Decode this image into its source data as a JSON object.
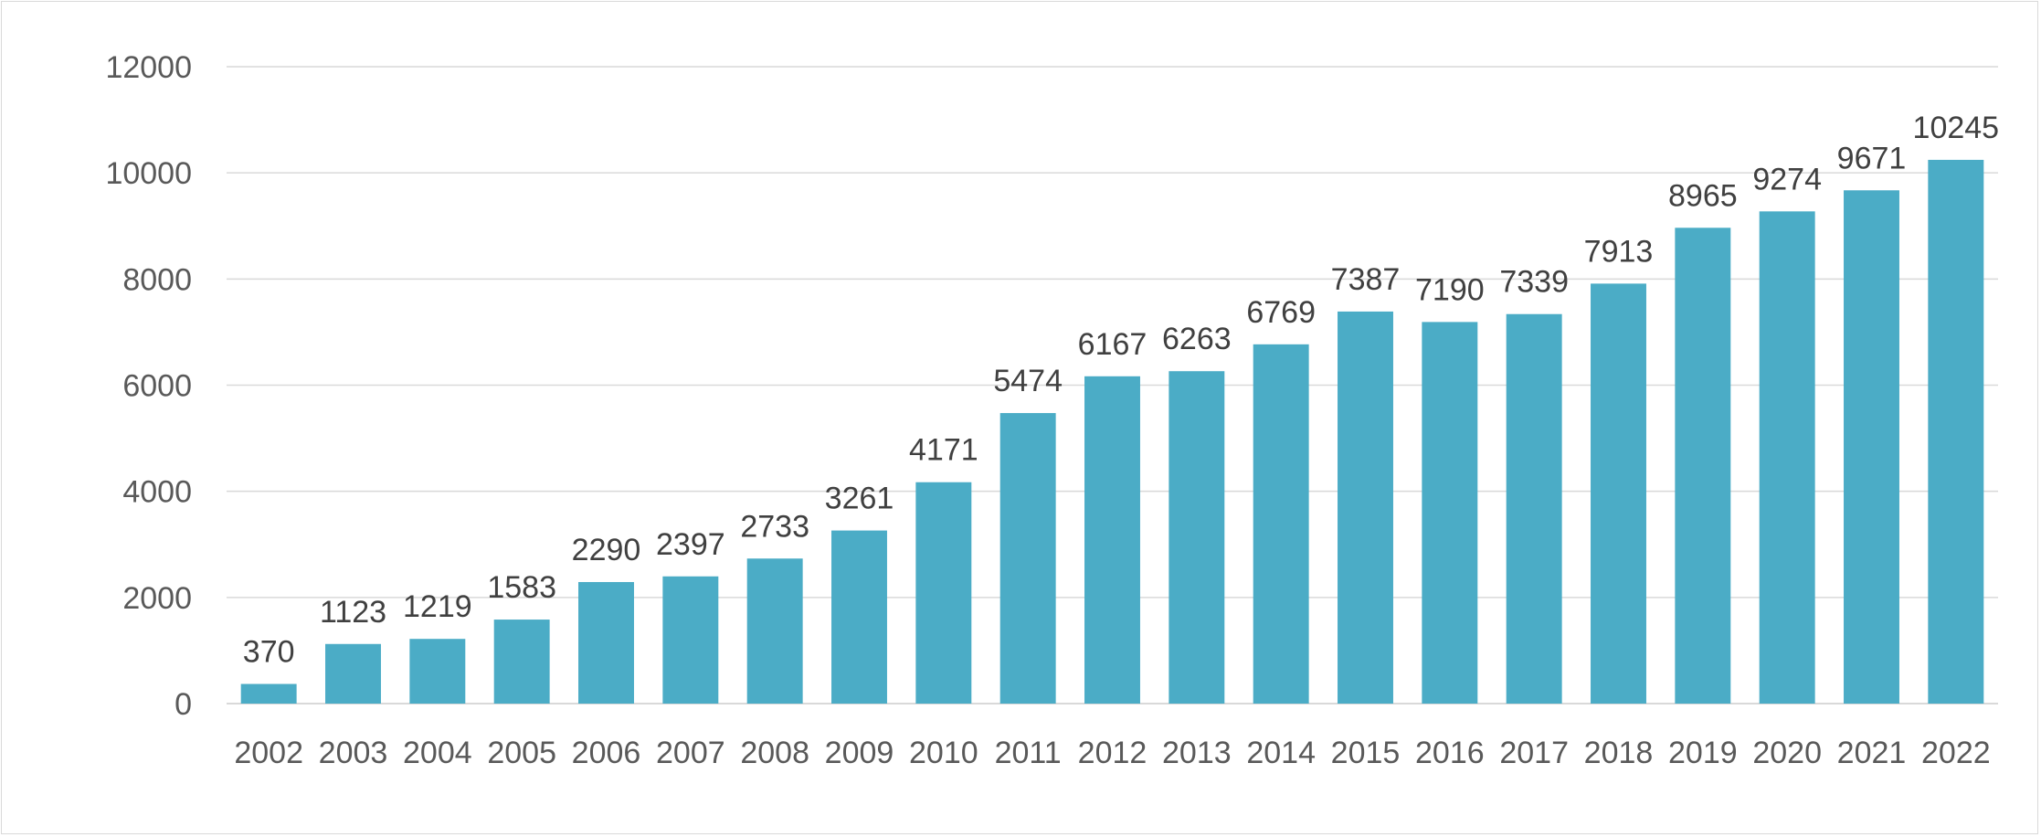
{
  "chart_data": {
    "type": "bar",
    "title": "",
    "xlabel": "",
    "ylabel": "",
    "categories": [
      "2002",
      "2003",
      "2004",
      "2005",
      "2006",
      "2007",
      "2008",
      "2009",
      "2010",
      "2011",
      "2012",
      "2013",
      "2014",
      "2015",
      "2016",
      "2017",
      "2018",
      "2019",
      "2020",
      "2021",
      "2022"
    ],
    "values": [
      370,
      1123,
      1219,
      1583,
      2290,
      2397,
      2733,
      3261,
      4171,
      5474,
      6167,
      6263,
      6769,
      7387,
      7190,
      7339,
      7913,
      8965,
      9274,
      9671,
      10245
    ],
    "ylim": [
      0,
      12000
    ],
    "yticks": [
      0,
      2000,
      4000,
      6000,
      8000,
      10000,
      12000
    ],
    "grid": true,
    "legend": "none",
    "data_labels": true,
    "bar_color": "#4BACC6",
    "gridline_color": "#d9d9d9"
  }
}
